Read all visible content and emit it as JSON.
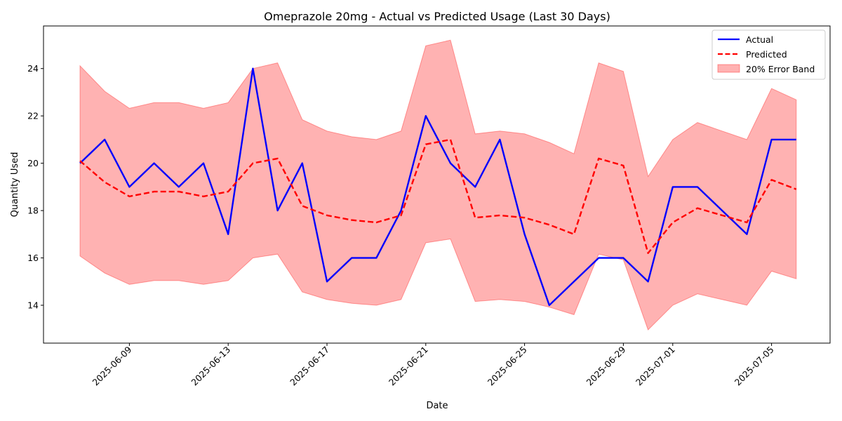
{
  "chart_data": {
    "type": "line",
    "title": "Omeprazole 20mg - Actual vs Predicted Usage (Last 30 Days)",
    "xlabel": "Date",
    "ylabel": "Quantity Used",
    "x": [
      "2025-06-07",
      "2025-06-08",
      "2025-06-09",
      "2025-06-10",
      "2025-06-11",
      "2025-06-12",
      "2025-06-13",
      "2025-06-14",
      "2025-06-15",
      "2025-06-16",
      "2025-06-17",
      "2025-06-18",
      "2025-06-19",
      "2025-06-20",
      "2025-06-21",
      "2025-06-22",
      "2025-06-23",
      "2025-06-24",
      "2025-06-25",
      "2025-06-26",
      "2025-06-27",
      "2025-06-28",
      "2025-06-29",
      "2025-06-30",
      "2025-07-01",
      "2025-07-02",
      "2025-07-03",
      "2025-07-04",
      "2025-07-05",
      "2025-07-06"
    ],
    "series": [
      {
        "name": "Actual",
        "color": "#0000ff",
        "style": "solid",
        "values": [
          20,
          21,
          19,
          20,
          19,
          20,
          17,
          24,
          18,
          20,
          15,
          16,
          16,
          18,
          22,
          20,
          19,
          21,
          17,
          14,
          15,
          16,
          16,
          15,
          19,
          19,
          18,
          17,
          21,
          21
        ]
      },
      {
        "name": "Predicted",
        "color": "#ff0000",
        "style": "dashed",
        "values": [
          20.1,
          19.2,
          18.6,
          18.8,
          18.8,
          18.6,
          18.8,
          20.0,
          20.2,
          18.2,
          17.8,
          17.6,
          17.5,
          17.8,
          20.8,
          21.0,
          17.7,
          17.8,
          17.7,
          17.4,
          17.0,
          20.2,
          19.9,
          16.2,
          17.5,
          18.1,
          17.8,
          17.5,
          19.3,
          18.9
        ]
      }
    ],
    "band": {
      "name": "20% Error Band",
      "color": "#ff0000",
      "opacity": 0.3,
      "relative_width": 0.2
    },
    "xticks": [
      "2025-06-09",
      "2025-06-13",
      "2025-06-17",
      "2025-06-21",
      "2025-06-25",
      "2025-06-29",
      "2025-07-01",
      "2025-07-05"
    ],
    "yticks": [
      14,
      16,
      18,
      20,
      22,
      24
    ],
    "ylim": [
      12.4,
      25.8
    ],
    "legend_position": "top-right",
    "grid": false
  }
}
